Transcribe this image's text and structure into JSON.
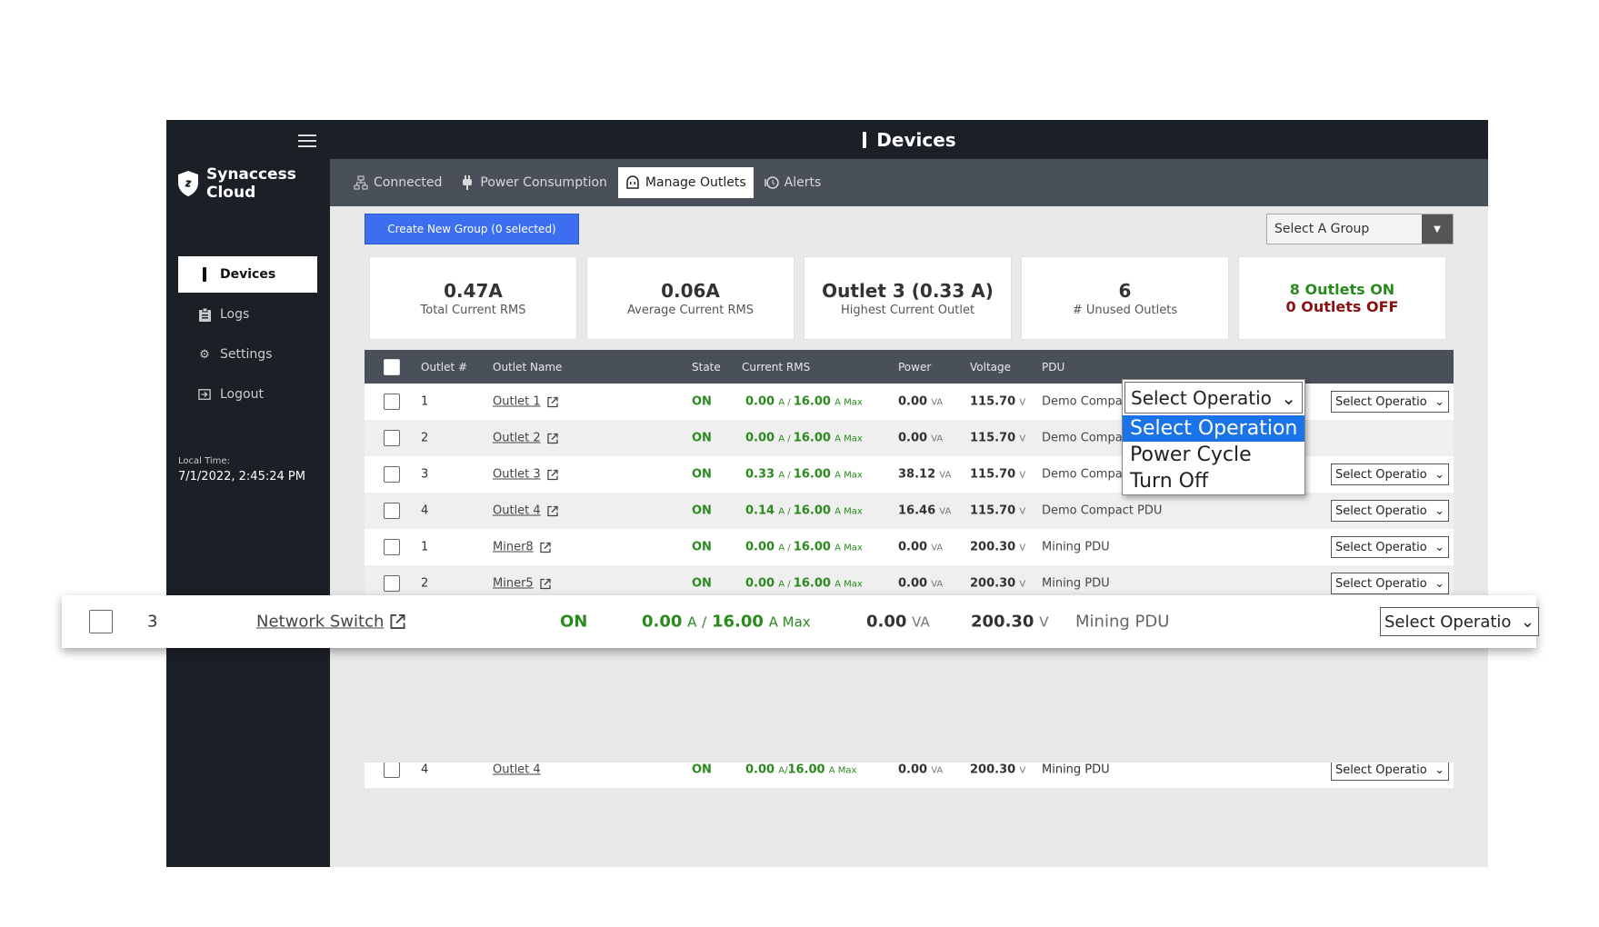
{
  "sidebar": {
    "brand": [
      "Synaccess",
      "Cloud"
    ],
    "nav": [
      {
        "label": "Devices",
        "icon": "device-icon",
        "active": true
      },
      {
        "label": "Logs",
        "icon": "clipboard-icon",
        "active": false
      },
      {
        "label": "Settings",
        "icon": "gear-icon",
        "active": false
      },
      {
        "label": "Logout",
        "icon": "logout-icon",
        "active": false
      }
    ],
    "local_time_label": "Local Time:",
    "local_time_value": "7/1/2022, 2:45:24 PM"
  },
  "header": {
    "title": "Devices"
  },
  "tabs": [
    {
      "label": "Connected",
      "icon": "network-icon"
    },
    {
      "label": "Power Consumption",
      "icon": "plug-icon"
    },
    {
      "label": "Manage Outlets",
      "icon": "outlet-icon",
      "active": true
    },
    {
      "label": "Alerts",
      "icon": "history-icon"
    }
  ],
  "toolbar": {
    "create_group": "Create New Group (0 selected)",
    "group_select": "Select A Group"
  },
  "stats": {
    "total": {
      "value": "0.47A",
      "label": "Total Current RMS"
    },
    "average": {
      "value": "0.06A",
      "label": "Average Current RMS"
    },
    "highest": {
      "value": "Outlet 3 (0.33 A)",
      "label": "Highest Current Outlet"
    },
    "unused": {
      "value": "6",
      "label": "# Unused Outlets"
    },
    "on": "8 Outlets ON",
    "off": "0 Outlets OFF"
  },
  "table": {
    "columns": [
      "Outlet #",
      "Outlet Name",
      "State",
      "Current RMS",
      "Power",
      "Voltage",
      "PDU"
    ],
    "current_unit": "A",
    "max_label": "A Max",
    "power_unit": "VA",
    "voltage_unit": "V",
    "op_placeholder": "Select Operatio",
    "rows": [
      {
        "num": "1",
        "name": "Outlet 1",
        "state": "ON",
        "current": "0.00",
        "max": "16.00",
        "power": "0.00",
        "voltage": "115.70",
        "pdu": "Demo Compact PDU"
      },
      {
        "num": "2",
        "name": "Outlet 2",
        "state": "ON",
        "current": "0.00",
        "max": "16.00",
        "power": "0.00",
        "voltage": "115.70",
        "pdu": "Demo Compact PDU"
      },
      {
        "num": "3",
        "name": "Outlet 3",
        "state": "ON",
        "current": "0.33",
        "max": "16.00",
        "power": "38.12",
        "voltage": "115.70",
        "pdu": "Demo Compact PDU"
      },
      {
        "num": "4",
        "name": "Outlet 4",
        "state": "ON",
        "current": "0.14",
        "max": "16.00",
        "power": "16.46",
        "voltage": "115.70",
        "pdu": "Demo Compact PDU"
      },
      {
        "num": "1",
        "name": "Miner8",
        "state": "ON",
        "current": "0.00",
        "max": "16.00",
        "power": "0.00",
        "voltage": "200.30",
        "pdu": "Mining PDU"
      },
      {
        "num": "2",
        "name": "Miner5",
        "state": "ON",
        "current": "0.00",
        "max": "16.00",
        "power": "0.00",
        "voltage": "200.30",
        "pdu": "Mining PDU"
      }
    ],
    "highlight_row": {
      "num": "3",
      "name": "Network Switch",
      "state": "ON",
      "current": "0.00",
      "max": "16.00",
      "power": "0.00",
      "voltage": "200.30",
      "pdu": "Mining PDU"
    },
    "partial_row": {
      "num": "4",
      "name": "Outlet 4",
      "state": "ON",
      "current": "0.00",
      "max": "16.00",
      "power": "0.00",
      "voltage": "200.30",
      "pdu": "Mining PDU"
    }
  },
  "dropdown": {
    "selected": "Select Operatio",
    "options": [
      "Select Operation",
      "Power Cycle",
      "Turn Off"
    ]
  }
}
